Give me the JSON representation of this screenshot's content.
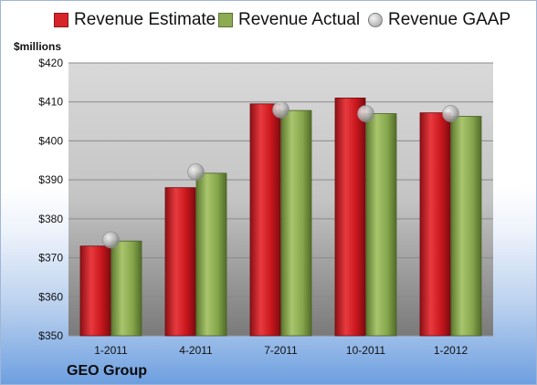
{
  "chart_data": {
    "type": "bar",
    "categories": [
      "1-2011",
      "4-2011",
      "7-2011",
      "10-2011",
      "1-2012"
    ],
    "series": [
      {
        "name": "Revenue Estimate",
        "kind": "bar",
        "color": "#d7232a",
        "values": [
          373,
          388,
          409.5,
          411,
          407.2
        ]
      },
      {
        "name": "Revenue Actual",
        "kind": "bar",
        "color": "#8cab52",
        "values": [
          374.3,
          391.7,
          407.8,
          407,
          406.3
        ]
      },
      {
        "name": "Revenue GAAP",
        "kind": "marker",
        "color": "#b8b8b8",
        "values": [
          374.6,
          392,
          408,
          407,
          407
        ]
      }
    ],
    "ylabel": "$millions",
    "ylim": [
      350,
      420
    ],
    "yticks": [
      "$350",
      "$360",
      "$370",
      "$380",
      "$390",
      "$400",
      "$410",
      "$420"
    ],
    "ytick_values": [
      350,
      360,
      370,
      380,
      390,
      400,
      410,
      420
    ],
    "grid": true,
    "legend_position": "top",
    "footer": "GEO Group"
  }
}
